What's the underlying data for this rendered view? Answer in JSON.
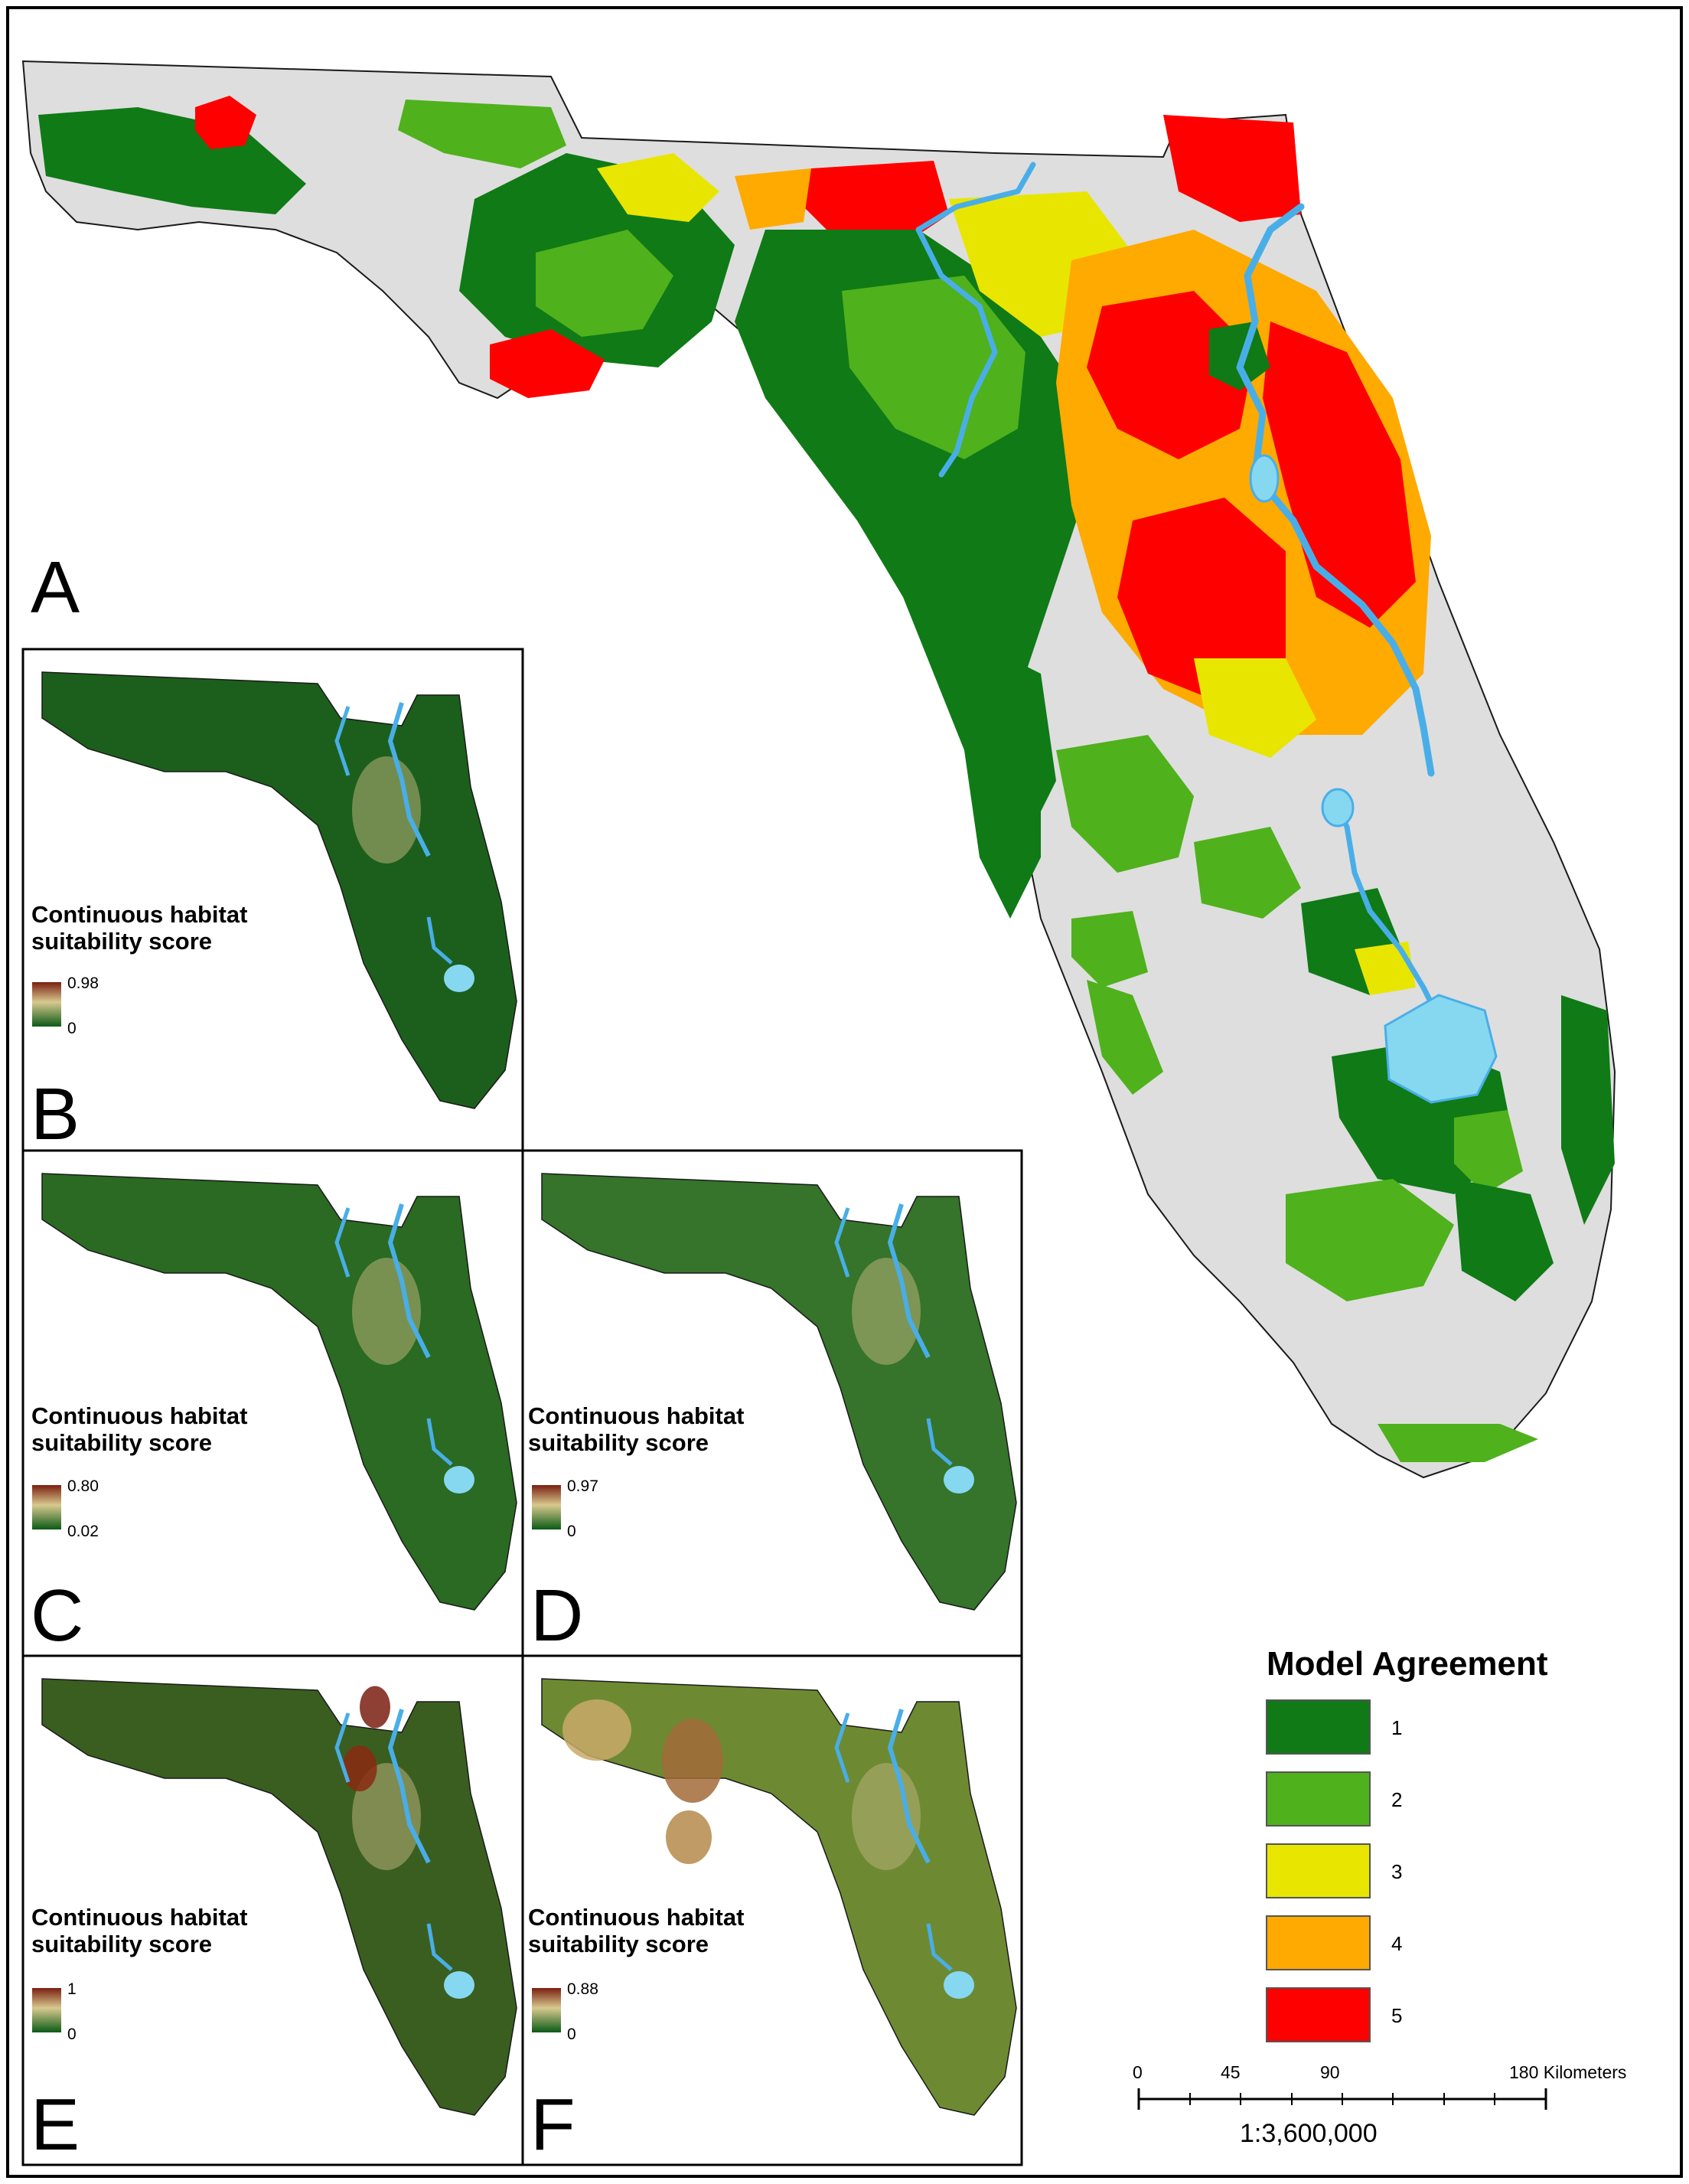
{
  "main_panel": {
    "letter": "A"
  },
  "insets": [
    {
      "letter": "B",
      "title_line1": "Continuous habitat",
      "title_line2": "suitability score",
      "max": "0.98",
      "min": "0"
    },
    {
      "letter": "C",
      "title_line1": "Continuous habitat",
      "title_line2": "suitability score",
      "max": "0.80",
      "min": "0.02"
    },
    {
      "letter": "D",
      "title_line1": "Continuous habitat",
      "title_line2": "suitability score",
      "max": "0.97",
      "min": "0"
    },
    {
      "letter": "E",
      "title_line1": "Continuous habitat",
      "title_line2": "suitability score",
      "max": "1",
      "min": "0"
    },
    {
      "letter": "F",
      "title_line1": "Continuous habitat",
      "title_line2": "suitability score",
      "max": "0.88",
      "min": "0"
    }
  ],
  "legend": {
    "title": "Model Agreement",
    "classes": [
      {
        "label": "1",
        "color": "#0f7a16"
      },
      {
        "label": "2",
        "color": "#4fb11c"
      },
      {
        "label": "3",
        "color": "#e8e600"
      },
      {
        "label": "4",
        "color": "#ffaa00"
      },
      {
        "label": "5",
        "color": "#ff0000"
      }
    ]
  },
  "scale_bar": {
    "ticks": [
      "0",
      "45",
      "90",
      "180 Kilometers"
    ],
    "ratio": "1:3,600,000"
  },
  "colors": {
    "outside_range": "#dedede",
    "water": "#49aee8",
    "lake": "#86d8f0",
    "suitability_high": "#8b2a12",
    "suitability_mid": "#c8bd7a",
    "suitability_low": "#0b5a16"
  }
}
